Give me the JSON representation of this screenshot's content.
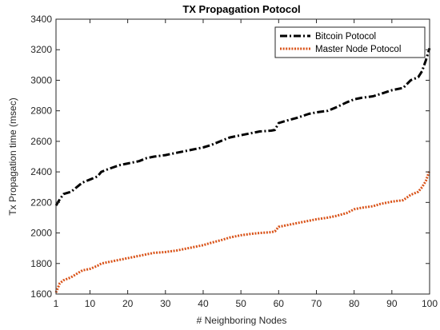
{
  "chart_data": {
    "type": "line",
    "title": "TX Propagation Potocol",
    "xlabel": "# Neighboring Nodes",
    "ylabel": "Tx Propagation time (msec)",
    "xlim": [
      1,
      100
    ],
    "ylim": [
      1600,
      3400
    ],
    "x_ticks": [
      1,
      10,
      20,
      30,
      40,
      50,
      60,
      70,
      80,
      90,
      100
    ],
    "y_ticks": [
      1600,
      1800,
      2000,
      2200,
      2400,
      2600,
      2800,
      3000,
      3200,
      3400
    ],
    "grid": false,
    "legend_position": "top-right",
    "series": [
      {
        "name": "Bitcoin Potocol",
        "color": "#000000",
        "style": "dash-dot",
        "x": [
          1,
          2,
          3,
          5,
          7,
          8,
          10,
          12,
          13,
          15,
          18,
          20,
          23,
          25,
          27,
          30,
          33,
          35,
          37,
          40,
          42,
          45,
          47,
          50,
          53,
          55,
          58,
          59,
          60,
          62,
          65,
          68,
          70,
          73,
          75,
          78,
          80,
          82,
          85,
          87,
          90,
          93,
          95,
          97,
          98,
          99,
          100
        ],
        "y": [
          2180,
          2220,
          2255,
          2270,
          2310,
          2330,
          2350,
          2370,
          2400,
          2420,
          2445,
          2455,
          2470,
          2490,
          2500,
          2510,
          2525,
          2535,
          2545,
          2560,
          2575,
          2605,
          2625,
          2640,
          2655,
          2665,
          2670,
          2675,
          2720,
          2735,
          2755,
          2780,
          2790,
          2800,
          2820,
          2855,
          2875,
          2885,
          2895,
          2910,
          2935,
          2950,
          3000,
          3020,
          3060,
          3130,
          3210
        ]
      },
      {
        "name": "Master Node Potocol",
        "color": "#d95319",
        "style": "dotted",
        "x": [
          1,
          2,
          3,
          5,
          7,
          8,
          10,
          12,
          13,
          15,
          18,
          20,
          23,
          25,
          27,
          30,
          33,
          35,
          37,
          40,
          42,
          45,
          47,
          50,
          53,
          55,
          58,
          59,
          60,
          62,
          65,
          68,
          70,
          73,
          75,
          78,
          80,
          82,
          85,
          87,
          90,
          93,
          95,
          97,
          98,
          99,
          100
        ],
        "y": [
          1610,
          1670,
          1690,
          1710,
          1740,
          1755,
          1765,
          1785,
          1800,
          1810,
          1825,
          1835,
          1850,
          1860,
          1870,
          1875,
          1885,
          1895,
          1905,
          1920,
          1935,
          1955,
          1970,
          1985,
          1995,
          2000,
          2005,
          2010,
          2040,
          2050,
          2065,
          2080,
          2090,
          2100,
          2110,
          2130,
          2155,
          2165,
          2175,
          2190,
          2205,
          2215,
          2250,
          2270,
          2300,
          2340,
          2410
        ]
      }
    ]
  }
}
